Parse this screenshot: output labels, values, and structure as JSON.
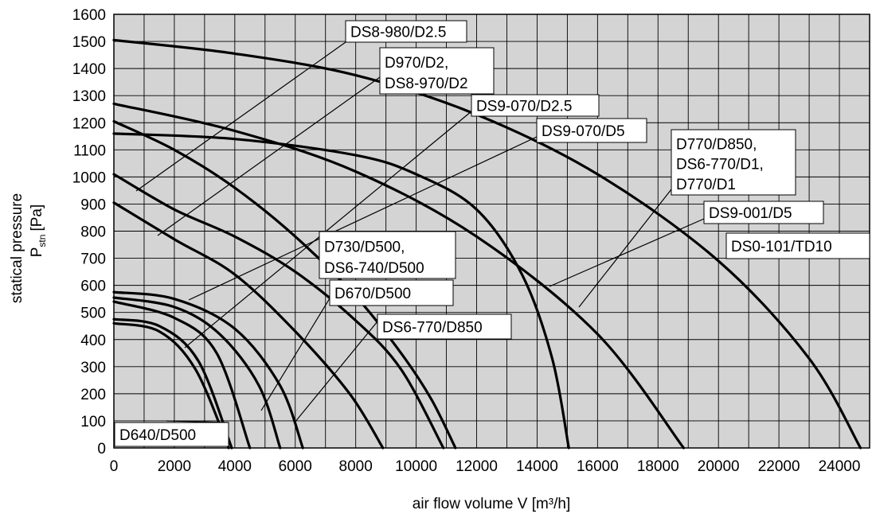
{
  "chart_data": {
    "type": "line",
    "xlabel": "air flow volume V [m³/h]",
    "ylabel_main": "statical pressure",
    "ylabel_symbol": "P",
    "ylabel_subscript": "stn",
    "ylabel_unit": "[Pa]",
    "xlim": [
      0,
      25000
    ],
    "ylim": [
      0,
      1600
    ],
    "x_ticks": [
      0,
      2000,
      4000,
      6000,
      8000,
      10000,
      12000,
      14000,
      16000,
      18000,
      20000,
      22000,
      24000
    ],
    "y_ticks": [
      0,
      100,
      200,
      300,
      400,
      500,
      600,
      700,
      800,
      900,
      1000,
      1100,
      1200,
      1300,
      1400,
      1500,
      1600
    ],
    "grid": true,
    "plot_background": "#d4d4d4",
    "line_color": "#000000",
    "series": [
      {
        "points": [
          [
            0,
            1505
          ],
          [
            4000,
            1455
          ],
          [
            8000,
            1375
          ],
          [
            12000,
            1230
          ],
          [
            16000,
            1010
          ],
          [
            20000,
            690
          ],
          [
            23000,
            330
          ],
          [
            24700,
            0
          ]
        ]
      },
      {
        "points": [
          [
            0,
            1270
          ],
          [
            4000,
            1170
          ],
          [
            8000,
            1020
          ],
          [
            12000,
            780
          ],
          [
            16000,
            420
          ],
          [
            18850,
            0
          ]
        ]
      },
      {
        "points": [
          [
            0,
            1160
          ],
          [
            4000,
            1140
          ],
          [
            8000,
            1080
          ],
          [
            10000,
            1010
          ],
          [
            12000,
            880
          ],
          [
            13500,
            640
          ],
          [
            14500,
            330
          ],
          [
            15050,
            0
          ]
        ]
      },
      {
        "points": [
          [
            0,
            1205
          ],
          [
            2000,
            1100
          ],
          [
            4000,
            960
          ],
          [
            6000,
            780
          ],
          [
            8000,
            560
          ],
          [
            9500,
            350
          ],
          [
            10500,
            180
          ],
          [
            11300,
            0
          ]
        ]
      },
      {
        "points": [
          [
            0,
            1010
          ],
          [
            2000,
            880
          ],
          [
            4000,
            780
          ],
          [
            6000,
            650
          ],
          [
            8000,
            470
          ],
          [
            9500,
            290
          ],
          [
            10900,
            0
          ]
        ]
      },
      {
        "points": [
          [
            0,
            905
          ],
          [
            2000,
            770
          ],
          [
            4000,
            640
          ],
          [
            6000,
            430
          ],
          [
            7800,
            200
          ],
          [
            8900,
            0
          ]
        ]
      },
      {
        "points": [
          [
            0,
            575
          ],
          [
            2000,
            550
          ],
          [
            4000,
            440
          ],
          [
            5500,
            230
          ],
          [
            6250,
            0
          ]
        ]
      },
      {
        "points": [
          [
            0,
            555
          ],
          [
            2000,
            520
          ],
          [
            3500,
            420
          ],
          [
            4800,
            230
          ],
          [
            5500,
            0
          ]
        ]
      },
      {
        "points": [
          [
            0,
            540
          ],
          [
            2000,
            480
          ],
          [
            3400,
            350
          ],
          [
            4500,
            0
          ]
        ]
      },
      {
        "points": [
          [
            0,
            475
          ],
          [
            1500,
            450
          ],
          [
            2800,
            320
          ],
          [
            3900,
            0
          ]
        ]
      },
      {
        "points": [
          [
            0,
            460
          ],
          [
            1500,
            430
          ],
          [
            2700,
            290
          ],
          [
            3800,
            0
          ]
        ]
      }
    ],
    "labels": [
      {
        "lines": [
          "DS8-980/D2.5"
        ],
        "target": [
          700,
          940
        ]
      },
      {
        "lines": [
          "D970/D2,",
          "DS8-970/D2"
        ],
        "target": [
          1500,
          780
        ]
      },
      {
        "lines": [
          "DS9-070/D2.5"
        ],
        "target": [
          2500,
          440
        ]
      },
      {
        "lines": [
          "DS9-070/D5"
        ],
        "target": [
          4400,
          685
        ]
      },
      {
        "lines": [
          "D770/D850,",
          "DS6-770/D1,",
          "D770/D1"
        ],
        "target": [
          15500,
          540
        ]
      },
      {
        "lines": [
          "DS9-001/D5"
        ],
        "target": [
          16900,
          695
        ]
      },
      {
        "lines": [
          "DS0-101/TD10"
        ],
        "target": [
          0,
          0
        ]
      },
      {
        "lines": [
          "D730/D500,",
          "DS6-740/D500"
        ],
        "target": [
          0,
          0
        ]
      },
      {
        "lines": [
          "D670/D500"
        ],
        "target": [
          5600,
          270
        ]
      },
      {
        "lines": [
          "DS6-770/D850"
        ],
        "target": [
          6300,
          150
        ]
      },
      {
        "lines": [
          "D640/D500"
        ],
        "target": [
          3600,
          495
        ]
      }
    ]
  }
}
